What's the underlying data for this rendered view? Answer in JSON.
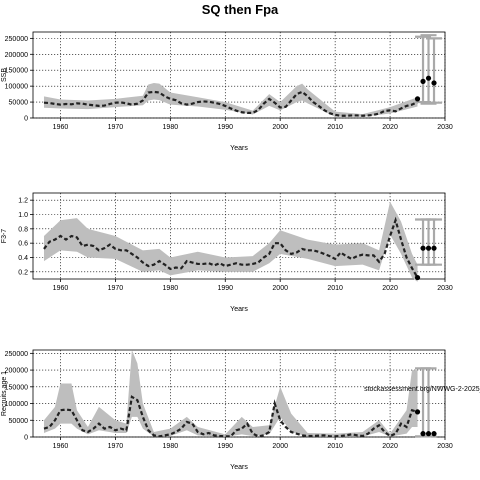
{
  "page": {
    "title": "SQ then Fpa"
  },
  "colors": {
    "band": "#bebebe",
    "line": "#222222",
    "point": "#000000",
    "whisker": "#a9a9a9",
    "grid": "#000000"
  },
  "chart_data": [
    {
      "type": "line",
      "title": "",
      "xlabel": "Years",
      "ylabel": "SSB",
      "xlim": [
        1955,
        2030
      ],
      "ylim": [
        0,
        270000
      ],
      "xticks": [
        1960,
        1970,
        1980,
        1990,
        2000,
        2010,
        2020,
        2030
      ],
      "yticks": [
        0,
        50000,
        100000,
        150000,
        200000,
        250000
      ],
      "grid": true,
      "series": [
        {
          "role": "median",
          "x": [
            1957,
            1958,
            1959,
            1960,
            1961,
            1962,
            1963,
            1964,
            1965,
            1966,
            1967,
            1968,
            1969,
            1970,
            1971,
            1972,
            1973,
            1974,
            1975,
            1976,
            1977,
            1978,
            1979,
            1980,
            1981,
            1982,
            1983,
            1984,
            1985,
            1986,
            1987,
            1988,
            1989,
            1990,
            1991,
            1992,
            1993,
            1994,
            1995,
            1996,
            1997,
            1998,
            1999,
            2000,
            2001,
            2002,
            2003,
            2004,
            2005,
            2006,
            2007,
            2008,
            2009,
            2010,
            2011,
            2012,
            2013,
            2014,
            2015,
            2016,
            2017,
            2018,
            2019,
            2020,
            2021,
            2022,
            2023,
            2024,
            2025
          ],
          "y": [
            48000,
            47000,
            44000,
            42000,
            44000,
            43000,
            46000,
            45000,
            42000,
            40000,
            38000,
            39000,
            44000,
            48000,
            49000,
            46000,
            42000,
            45000,
            55000,
            80000,
            82000,
            80000,
            68000,
            60000,
            56000,
            46000,
            42000,
            45000,
            50000,
            52000,
            51000,
            48000,
            44000,
            38000,
            30000,
            23000,
            18000,
            16000,
            16000,
            25000,
            45000,
            60000,
            48000,
            33000,
            35000,
            55000,
            75000,
            82000,
            68000,
            50000,
            38000,
            25000,
            15000,
            10000,
            7000,
            7000,
            8000,
            8000,
            7000,
            8000,
            10000,
            14000,
            22000,
            24000,
            21000,
            30000,
            38000,
            42000,
            50000
          ]
        },
        {
          "role": "upper",
          "x": [
            1957,
            1960,
            1965,
            1970,
            1975,
            1976,
            1977,
            1978,
            1980,
            1985,
            1990,
            1995,
            1998,
            2000,
            2003,
            2004,
            2005,
            2010,
            2015,
            2020,
            2025
          ],
          "y": [
            68000,
            58000,
            55000,
            60000,
            70000,
            105000,
            110000,
            108000,
            80000,
            65000,
            50000,
            23000,
            75000,
            50000,
            100000,
            108000,
            90000,
            20000,
            12000,
            34000,
            65000
          ]
        },
        {
          "role": "lower",
          "x": [
            1957,
            1960,
            1965,
            1970,
            1975,
            1976,
            1977,
            1978,
            1980,
            1985,
            1990,
            1995,
            1998,
            2000,
            2003,
            2004,
            2005,
            2010,
            2015,
            2020,
            2025
          ],
          "y": [
            32000,
            30000,
            28000,
            34000,
            40000,
            55000,
            58000,
            56000,
            42000,
            36000,
            26000,
            11000,
            38000,
            24000,
            50000,
            55000,
            46000,
            4000,
            4000,
            14000,
            36000
          ]
        }
      ],
      "projection_points": {
        "x": [
          2025,
          2026,
          2027,
          2028
        ],
        "y": [
          60000,
          115000,
          125000,
          110000
        ]
      },
      "whiskers": [
        {
          "x": 2026,
          "low": 50000,
          "high": 255000
        },
        {
          "x": 2027,
          "low": 45000,
          "high": 260000
        },
        {
          "x": 2028,
          "low": 48000,
          "high": 250000
        }
      ]
    },
    {
      "type": "line",
      "title": "",
      "xlabel": "Years",
      "ylabel": "F3-7",
      "xlim": [
        1955,
        2030
      ],
      "ylim": [
        0.1,
        1.3
      ],
      "xticks": [
        1960,
        1970,
        1980,
        1990,
        2000,
        2010,
        2020,
        2030
      ],
      "yticks": [
        0.2,
        0.4,
        0.6,
        0.8,
        1.0,
        1.2
      ],
      "yticklabels": [
        "0.2",
        "0.4",
        "0.6",
        "0.8",
        "1.0",
        "1.2"
      ],
      "grid": true,
      "series": [
        {
          "role": "median",
          "x": [
            1957,
            1958,
            1959,
            1960,
            1961,
            1962,
            1963,
            1964,
            1965,
            1966,
            1967,
            1968,
            1969,
            1970,
            1971,
            1972,
            1973,
            1974,
            1975,
            1976,
            1977,
            1978,
            1979,
            1980,
            1981,
            1982,
            1983,
            1984,
            1985,
            1986,
            1987,
            1988,
            1989,
            1990,
            1991,
            1992,
            1993,
            1994,
            1995,
            1996,
            1997,
            1998,
            1999,
            2000,
            2001,
            2002,
            2003,
            2004,
            2005,
            2006,
            2007,
            2008,
            2009,
            2010,
            2011,
            2012,
            2013,
            2014,
            2015,
            2016,
            2017,
            2018,
            2019,
            2020,
            2021,
            2022,
            2023,
            2024,
            2025
          ],
          "y": [
            0.52,
            0.62,
            0.65,
            0.7,
            0.65,
            0.7,
            0.68,
            0.56,
            0.58,
            0.56,
            0.5,
            0.53,
            0.58,
            0.52,
            0.5,
            0.5,
            0.45,
            0.4,
            0.33,
            0.28,
            0.3,
            0.35,
            0.3,
            0.24,
            0.26,
            0.25,
            0.35,
            0.33,
            0.31,
            0.31,
            0.32,
            0.29,
            0.32,
            0.28,
            0.3,
            0.32,
            0.3,
            0.3,
            0.31,
            0.33,
            0.4,
            0.45,
            0.6,
            0.6,
            0.5,
            0.45,
            0.47,
            0.52,
            0.5,
            0.5,
            0.48,
            0.45,
            0.42,
            0.38,
            0.47,
            0.42,
            0.38,
            0.42,
            0.44,
            0.43,
            0.43,
            0.34,
            0.45,
            0.7,
            0.92,
            0.65,
            0.4,
            0.25,
            0.12
          ]
        },
        {
          "role": "upper",
          "x": [
            1957,
            1960,
            1963,
            1965,
            1970,
            1975,
            1978,
            1980,
            1985,
            1990,
            1995,
            1998,
            2000,
            2005,
            2010,
            2015,
            2018,
            2020,
            2022,
            2024,
            2025
          ],
          "y": [
            0.7,
            0.92,
            0.95,
            0.8,
            0.7,
            0.5,
            0.52,
            0.4,
            0.48,
            0.4,
            0.42,
            0.6,
            0.78,
            0.65,
            0.58,
            0.6,
            0.5,
            1.18,
            0.9,
            0.45,
            0.3
          ]
        },
        {
          "role": "lower",
          "x": [
            1957,
            1960,
            1963,
            1965,
            1970,
            1975,
            1978,
            1980,
            1985,
            1990,
            1995,
            1998,
            2000,
            2005,
            2010,
            2015,
            2018,
            2020,
            2022,
            2024,
            2025
          ],
          "y": [
            0.35,
            0.5,
            0.48,
            0.4,
            0.38,
            0.2,
            0.22,
            0.15,
            0.22,
            0.2,
            0.2,
            0.32,
            0.45,
            0.38,
            0.28,
            0.3,
            0.22,
            0.72,
            0.45,
            0.12,
            0.06
          ]
        }
      ],
      "projection_points": {
        "x": [
          2025,
          2026,
          2027,
          2028
        ],
        "y": [
          0.12,
          0.53,
          0.53,
          0.53
        ]
      },
      "whiskers": [
        {
          "x": 2026,
          "low": 0.3,
          "high": 0.93
        },
        {
          "x": 2027,
          "low": 0.3,
          "high": 0.93
        },
        {
          "x": 2028,
          "low": 0.3,
          "high": 0.93
        }
      ]
    },
    {
      "type": "line",
      "title": "",
      "xlabel": "Years",
      "ylabel": "Recruits age 1",
      "xlim": [
        1955,
        2030
      ],
      "ylim": [
        0,
        260000
      ],
      "xticks": [
        1960,
        1970,
        1980,
        1990,
        2000,
        2010,
        2020,
        2030
      ],
      "yticks": [
        0,
        50000,
        100000,
        150000,
        200000,
        250000
      ],
      "grid": true,
      "series": [
        {
          "role": "median",
          "x": [
            1957,
            1958,
            1959,
            1960,
            1961,
            1962,
            1963,
            1964,
            1965,
            1966,
            1967,
            1968,
            1969,
            1970,
            1971,
            1972,
            1973,
            1974,
            1975,
            1976,
            1977,
            1978,
            1979,
            1980,
            1981,
            1982,
            1983,
            1984,
            1985,
            1986,
            1987,
            1988,
            1989,
            1990,
            1991,
            1992,
            1993,
            1994,
            1995,
            1996,
            1997,
            1998,
            1999,
            2000,
            2001,
            2002,
            2003,
            2004,
            2005,
            2006,
            2007,
            2008,
            2009,
            2010,
            2011,
            2012,
            2013,
            2014,
            2015,
            2016,
            2017,
            2018,
            2019,
            2020,
            2021,
            2022,
            2023,
            2024,
            2025
          ],
          "y": [
            25000,
            30000,
            50000,
            80000,
            82000,
            80000,
            50000,
            20000,
            15000,
            25000,
            40000,
            25000,
            30000,
            20000,
            25000,
            20000,
            120000,
            110000,
            60000,
            20000,
            5000,
            2000,
            5000,
            8000,
            15000,
            25000,
            45000,
            40000,
            15000,
            8000,
            12000,
            5000,
            3000,
            2000,
            2000,
            20000,
            25000,
            40000,
            10000,
            2000,
            5000,
            15000,
            100000,
            50000,
            30000,
            15000,
            10000,
            5000,
            3000,
            3000,
            4000,
            5000,
            2000,
            2000,
            3000,
            5000,
            8000,
            5000,
            3000,
            10000,
            25000,
            35000,
            15000,
            3000,
            10000,
            40000,
            30000,
            80000,
            75000
          ]
        },
        {
          "role": "upper",
          "x": [
            1957,
            1959,
            1960,
            1962,
            1963,
            1965,
            1967,
            1970,
            1972,
            1973,
            1974,
            1975,
            1977,
            1980,
            1983,
            1985,
            1990,
            1993,
            1995,
            1998,
            2000,
            2002,
            2005,
            2010,
            2015,
            2018,
            2020,
            2023,
            2024,
            2025
          ],
          "y": [
            50000,
            90000,
            160000,
            160000,
            80000,
            30000,
            90000,
            50000,
            40000,
            260000,
            220000,
            100000,
            15000,
            25000,
            60000,
            30000,
            8000,
            60000,
            30000,
            35000,
            150000,
            70000,
            12000,
            10000,
            15000,
            50000,
            10000,
            80000,
            200000,
            200000
          ]
        },
        {
          "role": "lower",
          "x": [
            1957,
            1959,
            1960,
            1962,
            1963,
            1965,
            1967,
            1970,
            1972,
            1973,
            1974,
            1975,
            1977,
            1980,
            1983,
            1985,
            1990,
            1993,
            1995,
            1998,
            2000,
            2002,
            2005,
            2010,
            2015,
            2018,
            2020,
            2023,
            2024,
            2025
          ],
          "y": [
            12000,
            25000,
            40000,
            40000,
            25000,
            8000,
            20000,
            12000,
            12000,
            60000,
            60000,
            25000,
            1000,
            3000,
            20000,
            5000,
            500,
            8000,
            3000,
            8000,
            60000,
            15000,
            1000,
            500,
            1000,
            15000,
            1000,
            10000,
            30000,
            30000
          ]
        }
      ],
      "projection_points": {
        "x": [
          2025,
          2026,
          2027,
          2028
        ],
        "y": [
          75000,
          10000,
          10000,
          10000
        ]
      },
      "whiskers": [
        {
          "x": 2026,
          "low": 2000,
          "high": 205000
        },
        {
          "x": 2027,
          "low": 2000,
          "high": 205000
        }
      ],
      "annotation": "stockassessment.org/NWWG-2-2025_h"
    }
  ]
}
